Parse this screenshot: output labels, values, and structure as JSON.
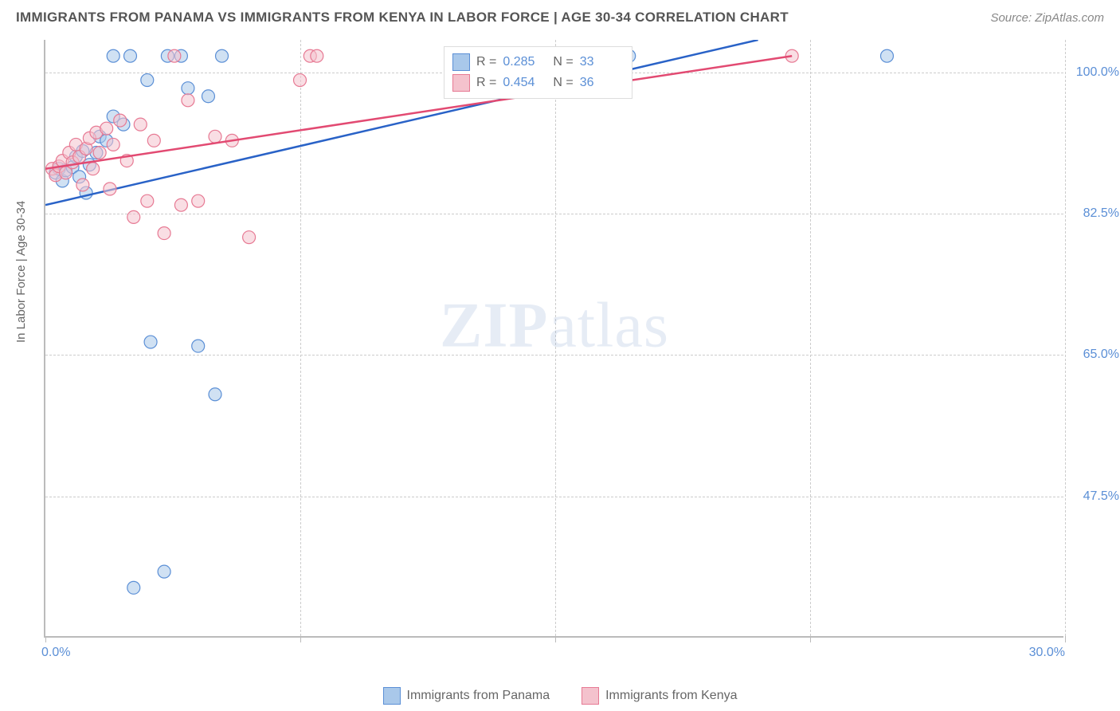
{
  "title": "IMMIGRANTS FROM PANAMA VS IMMIGRANTS FROM KENYA IN LABOR FORCE | AGE 30-34 CORRELATION CHART",
  "source": "Source: ZipAtlas.com",
  "ylabel": "In Labor Force | Age 30-34",
  "watermark_a": "ZIP",
  "watermark_b": "atlas",
  "chart": {
    "type": "scatter",
    "xlim": [
      0,
      30
    ],
    "ylim": [
      30,
      104
    ],
    "xticks": [
      0,
      7.5,
      15,
      22.5,
      30
    ],
    "xtick_labels": {
      "0": "0.0%",
      "30": "30.0%"
    },
    "yticks": [
      47.5,
      65.0,
      82.5,
      100.0
    ],
    "ytick_labels": [
      "47.5%",
      "65.0%",
      "82.5%",
      "100.0%"
    ],
    "grid_color": "#cccccc",
    "axis_color": "#bbbbbb",
    "background": "#ffffff",
    "marker_radius": 8,
    "marker_opacity": 0.55,
    "line_width": 2.5,
    "series": [
      {
        "name": "Immigrants from Panama",
        "color_fill": "#a9c8ea",
        "color_stroke": "#5b8fd6",
        "line_color": "#2962c7",
        "R": "0.285",
        "N": "33",
        "points": [
          [
            0.3,
            87.5
          ],
          [
            0.4,
            88.0
          ],
          [
            0.5,
            86.5
          ],
          [
            0.6,
            87.8
          ],
          [
            0.8,
            88.2
          ],
          [
            0.9,
            89.5
          ],
          [
            1.0,
            87.0
          ],
          [
            1.1,
            90.2
          ],
          [
            1.2,
            85.0
          ],
          [
            1.3,
            88.5
          ],
          [
            1.5,
            90.0
          ],
          [
            1.6,
            92.0
          ],
          [
            1.8,
            91.5
          ],
          [
            2.0,
            94.5
          ],
          [
            2.0,
            102.0
          ],
          [
            2.3,
            93.5
          ],
          [
            2.5,
            102.0
          ],
          [
            2.6,
            36.0
          ],
          [
            3.0,
            99.0
          ],
          [
            3.1,
            66.5
          ],
          [
            3.5,
            38.0
          ],
          [
            3.6,
            102.0
          ],
          [
            4.0,
            102.0
          ],
          [
            4.2,
            98.0
          ],
          [
            4.5,
            66.0
          ],
          [
            4.8,
            97.0
          ],
          [
            5.0,
            60.0
          ],
          [
            5.2,
            102.0
          ],
          [
            14.8,
            102.0
          ],
          [
            15.5,
            102.0
          ],
          [
            17.0,
            102.0
          ],
          [
            17.2,
            102.0
          ],
          [
            24.8,
            102.0
          ]
        ],
        "trend": {
          "x1": 0,
          "y1": 83.5,
          "x2": 21.0,
          "y2": 104
        }
      },
      {
        "name": "Immigrants from Kenya",
        "color_fill": "#f4c2cd",
        "color_stroke": "#e77a94",
        "line_color": "#e24a72",
        "R": "0.454",
        "N": "36",
        "points": [
          [
            0.2,
            88.0
          ],
          [
            0.3,
            87.2
          ],
          [
            0.4,
            88.3
          ],
          [
            0.5,
            89.0
          ],
          [
            0.6,
            87.5
          ],
          [
            0.7,
            90.0
          ],
          [
            0.8,
            88.8
          ],
          [
            0.9,
            91.0
          ],
          [
            1.0,
            89.5
          ],
          [
            1.1,
            86.0
          ],
          [
            1.2,
            90.5
          ],
          [
            1.3,
            91.8
          ],
          [
            1.4,
            88.0
          ],
          [
            1.5,
            92.5
          ],
          [
            1.6,
            90.0
          ],
          [
            1.8,
            93.0
          ],
          [
            1.9,
            85.5
          ],
          [
            2.0,
            91.0
          ],
          [
            2.2,
            94.0
          ],
          [
            2.4,
            89.0
          ],
          [
            2.6,
            82.0
          ],
          [
            2.8,
            93.5
          ],
          [
            3.0,
            84.0
          ],
          [
            3.2,
            91.5
          ],
          [
            3.5,
            80.0
          ],
          [
            3.8,
            102.0
          ],
          [
            4.0,
            83.5
          ],
          [
            4.2,
            96.5
          ],
          [
            4.5,
            84.0
          ],
          [
            5.0,
            92.0
          ],
          [
            5.5,
            91.5
          ],
          [
            6.0,
            79.5
          ],
          [
            7.5,
            99.0
          ],
          [
            7.8,
            102.0
          ],
          [
            8.0,
            102.0
          ],
          [
            22.0,
            102.0
          ]
        ],
        "trend": {
          "x1": 0,
          "y1": 88.0,
          "x2": 22.0,
          "y2": 102.0
        }
      }
    ]
  },
  "legend_bottom": [
    {
      "label": "Immigrants from Panama",
      "fill": "#a9c8ea",
      "stroke": "#5b8fd6"
    },
    {
      "label": "Immigrants from Kenya",
      "fill": "#f4c2cd",
      "stroke": "#e77a94"
    }
  ]
}
